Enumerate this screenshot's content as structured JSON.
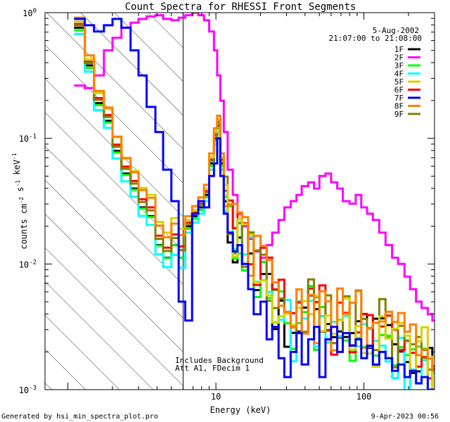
{
  "chart_data": {
    "type": "line",
    "title": "Count Spectra for RHESSI Front Segments",
    "xlabel": "Energy (keV)",
    "ylabel": "counts cm^-2 s^-1 keV^-1",
    "xscale": "log",
    "yscale": "log",
    "xlim": [
      0.7,
      300
    ],
    "ylim": [
      0.001,
      1.0
    ],
    "x_ticks": [
      {
        "value": 10,
        "label": "10"
      },
      {
        "value": 100,
        "label": "100"
      }
    ],
    "y_ticks": [
      {
        "value": 0.001,
        "label": "10^-3"
      },
      {
        "value": 0.01,
        "label": "10^-2"
      },
      {
        "value": 0.1,
        "label": "10^-1"
      },
      {
        "value": 1.0,
        "label": "10^0"
      }
    ],
    "vline_energy": 6.0,
    "hatched_region": [
      0.7,
      6.0
    ],
    "annotations": {
      "date": "5-Aug-2002",
      "time_range": "21:07:00 to 21:08:00",
      "background_note": "Includes Background",
      "atten_note": "Att A1, FDecim 1"
    },
    "footer": {
      "left": "Generated by hsi_min_spectra_plot.pro",
      "right": "9-Apr-2023 00:56"
    },
    "series": [
      {
        "name": "1F",
        "color": "#000000",
        "style": "low",
        "offset": 0.0,
        "rise": 0.0
      },
      {
        "name": "2F",
        "color": "#ff00ff",
        "style": "high",
        "offset": 0.0,
        "rise": 0.0
      },
      {
        "name": "3F",
        "color": "#00ff00",
        "style": "low",
        "offset": -0.02,
        "rise": 0.02
      },
      {
        "name": "4F",
        "color": "#00ffff",
        "style": "low",
        "offset": -0.05,
        "rise": -0.03
      },
      {
        "name": "5F",
        "color": "#d4d400",
        "style": "low",
        "offset": 0.05,
        "rise": 0.18
      },
      {
        "name": "6F",
        "color": "#ff0000",
        "style": "low",
        "offset": 0.03,
        "rise": 0.06
      },
      {
        "name": "7F",
        "color": "#0000ff",
        "style": "blue",
        "offset": 0.0,
        "rise": 0.0
      },
      {
        "name": "8F",
        "color": "#ff8000",
        "style": "low",
        "offset": 0.08,
        "rise": 0.1
      },
      {
        "name": "9F",
        "color": "#808000",
        "style": "low",
        "offset": 0.02,
        "rise": 0.04
      }
    ],
    "bins": [
      1.1,
      1.3,
      1.5,
      1.75,
      2.0,
      2.3,
      2.65,
      3.0,
      3.4,
      3.9,
      4.4,
      5.0,
      5.6,
      6.2,
      6.9,
      7.6,
      8.3,
      9.0,
      9.7,
      10.2,
      10.7,
      11.3,
      12.0,
      13.0,
      14.0,
      15.0,
      16.5,
      18.0,
      20.0,
      22.0,
      24.0,
      26.5,
      29.0,
      32.0,
      35.0,
      38.0,
      42.0,
      46.0,
      50.0,
      55.0,
      60.0,
      66.0,
      72.0,
      80.0,
      88.0,
      96.0,
      105.0,
      115.0,
      127.0,
      140.0,
      155.0,
      170.0,
      188.0,
      205.0,
      225.0,
      245.0,
      270.0,
      290.0
    ],
    "base_log_values": [
      -0.12,
      -0.42,
      -0.72,
      -0.86,
      -1.1,
      -1.28,
      -1.4,
      -1.55,
      -1.62,
      -1.85,
      -1.95,
      -1.85,
      -1.95,
      -1.7,
      -1.62,
      -1.55,
      -1.45,
      -1.2,
      -1.0,
      -0.9,
      -1.2,
      -1.5,
      -1.65,
      -1.8,
      -1.75,
      -1.85,
      -1.95,
      -2.05,
      -2.1,
      -2.2,
      -2.3,
      -2.35,
      -2.45,
      -2.5,
      -2.4,
      -2.45,
      -2.35,
      -2.5,
      -2.4,
      -2.45,
      -2.55,
      -2.5,
      -2.4,
      -2.55,
      -2.45,
      -2.6,
      -2.55,
      -2.65,
      -2.5,
      -2.6,
      -2.7,
      -2.65,
      -2.75,
      -2.7,
      -2.8,
      -2.75,
      -2.85,
      -2.9
    ],
    "mag_log_values": [
      -0.58,
      -0.6,
      -0.5,
      -0.3,
      -0.2,
      -0.12,
      -0.08,
      -0.05,
      -0.03,
      -0.02,
      -0.05,
      -0.06,
      -0.04,
      -0.02,
      0.0,
      -0.02,
      -0.06,
      -0.15,
      -0.3,
      -0.5,
      -0.7,
      -0.95,
      -1.25,
      -1.45,
      -1.6,
      -1.7,
      -1.8,
      -1.9,
      -1.95,
      -1.85,
      -1.75,
      -1.65,
      -1.55,
      -1.5,
      -1.45,
      -1.38,
      -1.35,
      -1.4,
      -1.3,
      -1.28,
      -1.35,
      -1.4,
      -1.5,
      -1.52,
      -1.45,
      -1.55,
      -1.6,
      -1.65,
      -1.75,
      -1.85,
      -1.95,
      -2.0,
      -2.1,
      -2.2,
      -2.3,
      -2.35,
      -2.4,
      -2.45
    ],
    "blue_log_values": [
      -0.05,
      -0.1,
      -0.15,
      -0.1,
      -0.05,
      -0.12,
      -0.3,
      -0.5,
      -0.75,
      -0.95,
      -1.25,
      -1.5,
      -2.3,
      -2.45,
      -1.6,
      -1.5,
      -1.55,
      -1.3,
      -1.2,
      -1.0,
      -1.3,
      -1.6,
      -1.75,
      -1.9,
      -1.85,
      -2.0,
      -2.2,
      -2.4,
      -2.3,
      -2.6,
      -2.5,
      -2.75,
      -2.9,
      -2.7,
      -2.55,
      -2.8,
      -2.6,
      -2.5,
      -2.9,
      -2.6,
      -2.5,
      -2.7,
      -2.55,
      -2.65,
      -2.6,
      -2.75,
      -2.65,
      -2.8,
      -2.7,
      -2.75,
      -2.85,
      -2.8,
      -2.9,
      -2.85,
      -2.95,
      -2.9,
      -3.0,
      -3.0
    ]
  }
}
